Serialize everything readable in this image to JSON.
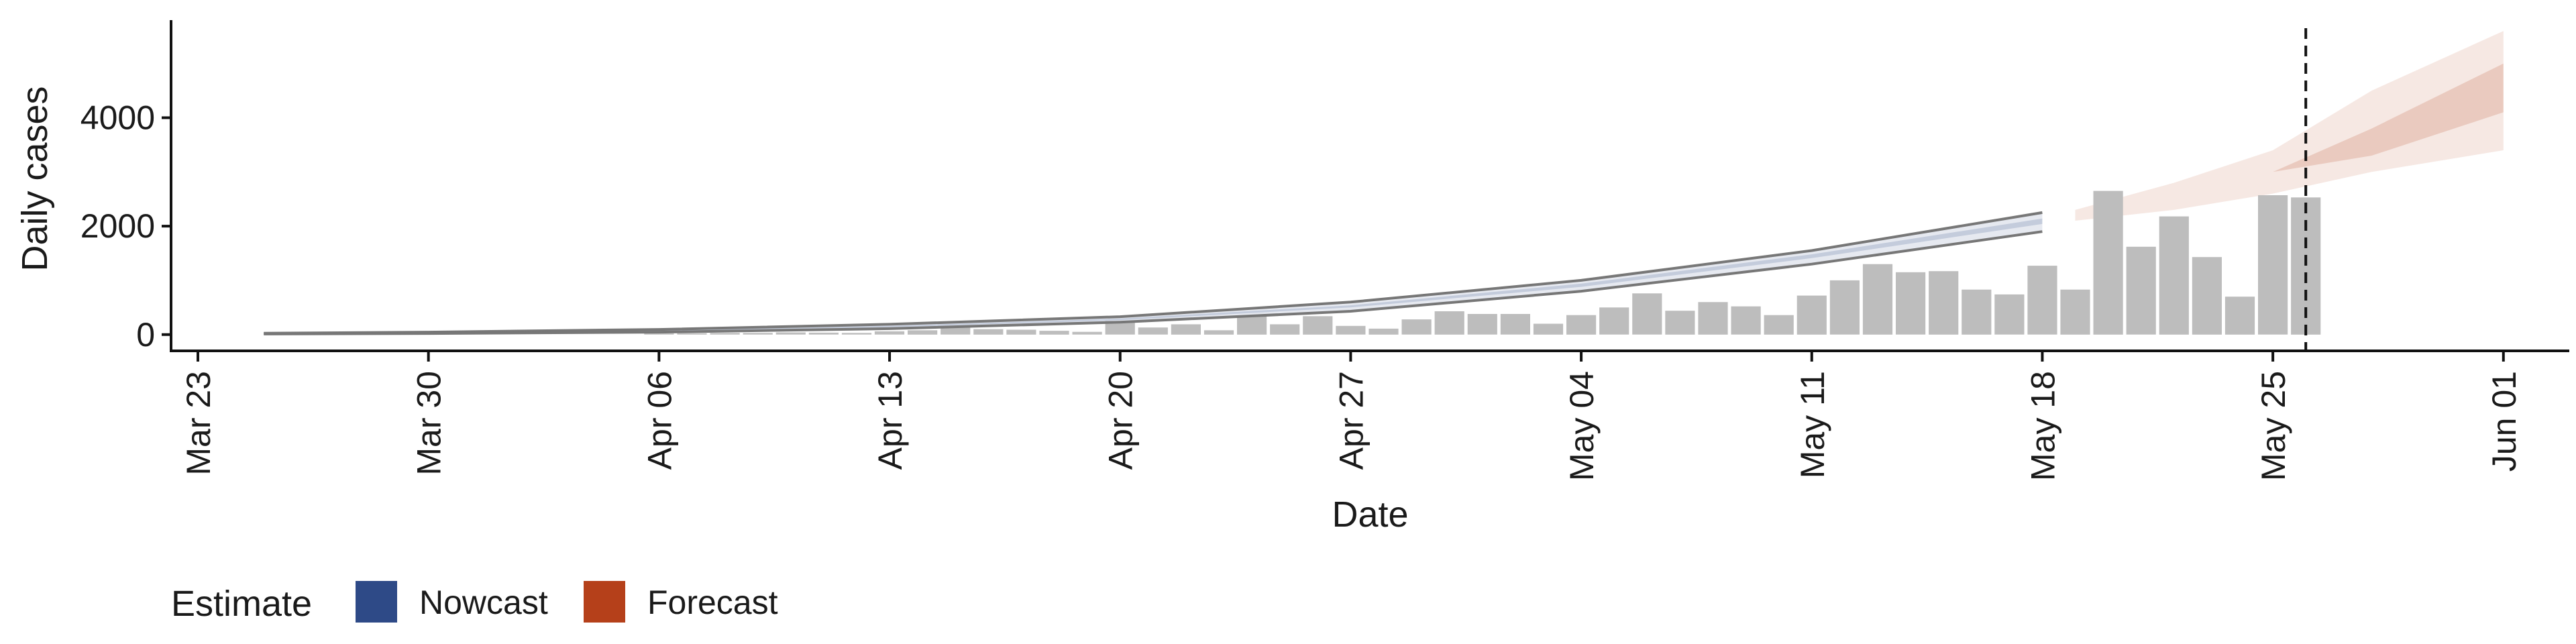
{
  "chart_data": {
    "type": "bar",
    "xlabel": "Date",
    "ylabel": "Daily cases",
    "ylim": [
      -300,
      5800
    ],
    "y_ticks": [
      0,
      2000,
      4000
    ],
    "y_tick_labels": [
      "0",
      "2000",
      "4000"
    ],
    "x_range": [
      "2020-03-23",
      "2020-06-03"
    ],
    "x_ticks": [
      "2020-03-23",
      "2020-03-30",
      "2020-04-06",
      "2020-04-13",
      "2020-04-20",
      "2020-04-27",
      "2020-05-04",
      "2020-05-11",
      "2020-05-18",
      "2020-05-25",
      "2020-06-01"
    ],
    "x_tick_labels": [
      "Mar 23",
      "Mar 30",
      "Apr 06",
      "Apr 13",
      "Apr 20",
      "Apr 27",
      "May 04",
      "May 11",
      "May 18",
      "May 25",
      "Jun 01"
    ],
    "grid": false,
    "bars": {
      "color": "#bdbdbd",
      "x": [
        "2020-04-06",
        "2020-04-07",
        "2020-04-08",
        "2020-04-09",
        "2020-04-10",
        "2020-04-11",
        "2020-04-12",
        "2020-04-13",
        "2020-04-14",
        "2020-04-15",
        "2020-04-16",
        "2020-04-17",
        "2020-04-18",
        "2020-04-19",
        "2020-04-20",
        "2020-04-21",
        "2020-04-22",
        "2020-04-23",
        "2020-04-24",
        "2020-04-25",
        "2020-04-26",
        "2020-04-27",
        "2020-04-28",
        "2020-04-29",
        "2020-04-30",
        "2020-05-01",
        "2020-05-02",
        "2020-05-03",
        "2020-05-04",
        "2020-05-05",
        "2020-05-06",
        "2020-05-07",
        "2020-05-08",
        "2020-05-09",
        "2020-05-10",
        "2020-05-11",
        "2020-05-12",
        "2020-05-13",
        "2020-05-14",
        "2020-05-15",
        "2020-05-16",
        "2020-05-17",
        "2020-05-18",
        "2020-05-19",
        "2020-05-20",
        "2020-05-21",
        "2020-05-22",
        "2020-05-23",
        "2020-05-24",
        "2020-05-25",
        "2020-05-26"
      ],
      "values": [
        20,
        25,
        30,
        30,
        40,
        35,
        30,
        60,
        80,
        130,
        100,
        90,
        70,
        50,
        250,
        130,
        190,
        80,
        340,
        190,
        340,
        160,
        110,
        280,
        430,
        380,
        380,
        200,
        360,
        500,
        760,
        440,
        600,
        520,
        360,
        720,
        1000,
        1300,
        1150,
        1170,
        830,
        740,
        1270,
        830,
        2650,
        1620,
        2180,
        1430,
        700,
        2570,
        2530
      ]
    },
    "series": [
      {
        "name": "Nowcast",
        "color": "#2e4a87",
        "x": [
          "2020-03-25",
          "2020-03-30",
          "2020-04-06",
          "2020-04-13",
          "2020-04-20",
          "2020-04-27",
          "2020-05-04",
          "2020-05-11",
          "2020-05-18"
        ],
        "outer_lower": [
          10,
          20,
          45,
          110,
          230,
          430,
          800,
          1300,
          1900
        ],
        "outer_upper": [
          25,
          45,
          95,
          190,
          330,
          600,
          1000,
          1550,
          2250
        ],
        "inner_lower": [
          14,
          28,
          60,
          135,
          265,
          500,
          880,
          1410,
          2040
        ],
        "inner_upper": [
          20,
          38,
          78,
          160,
          295,
          540,
          940,
          1480,
          2140
        ]
      },
      {
        "name": "Forecast",
        "color": "#b5401a",
        "x": [
          "2020-05-19",
          "2020-05-22",
          "2020-05-25",
          "2020-05-28",
          "2020-06-01"
        ],
        "outer_lower": [
          2100,
          2300,
          2600,
          3000,
          3400
        ],
        "outer_upper": [
          2300,
          2800,
          3400,
          4500,
          5600
        ],
        "inner_lower": [
          2200,
          2600,
          3000,
          3300,
          4100
        ],
        "inner_upper": [
          2200,
          2600,
          3000,
          3800,
          5000
        ]
      }
    ],
    "vline": "2020-05-26",
    "legend": {
      "title": "Estimate",
      "placement": "bottom-left",
      "entries": [
        {
          "label": "Nowcast",
          "color": "#2e4a87"
        },
        {
          "label": "Forecast",
          "color": "#b5401a"
        }
      ]
    }
  }
}
